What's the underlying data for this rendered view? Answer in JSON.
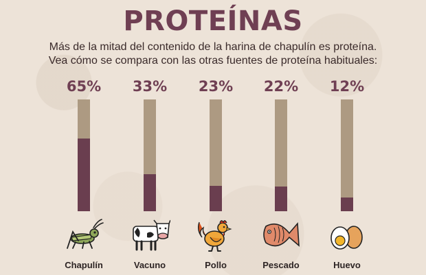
{
  "chart_data": {
    "type": "bar",
    "title": "PROTEÍNAS",
    "subtitle_lines": [
      "Más de la mitad del contenido de la harina de chapulín es proteína.",
      "Vea cómo se compara con las otras fuentes de proteína habituales:"
    ],
    "categories": [
      "Chapulín",
      "Vacuno",
      "Pollo",
      "Pescado",
      "Huevo"
    ],
    "values": [
      65,
      33,
      23,
      22,
      12
    ],
    "value_labels": [
      "65%",
      "33%",
      "23%",
      "22%",
      "12%"
    ],
    "icons": [
      "grasshopper-icon",
      "cow-icon",
      "rooster-icon",
      "fish-icon",
      "egg-icon"
    ],
    "ylim": [
      0,
      100
    ],
    "colors": {
      "fill": "#6a3e4f",
      "track": "#ad9a82",
      "accent": "#6f3f53"
    },
    "xlabel": "",
    "ylabel": ""
  }
}
